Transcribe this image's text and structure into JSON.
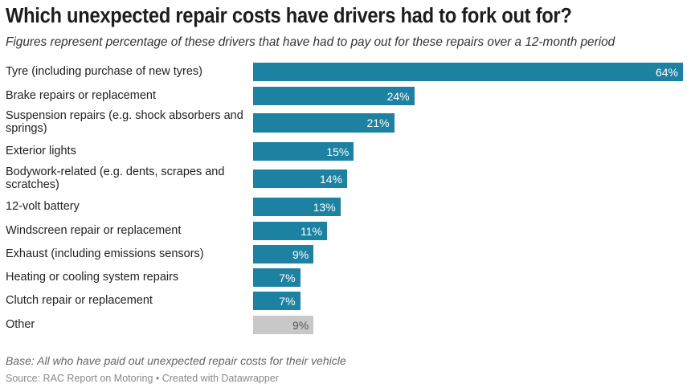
{
  "chart_data": {
    "type": "bar",
    "orientation": "horizontal",
    "title": "Which unexpected repair costs have drivers had to fork out for?",
    "subtitle": "Figures represent percentage of these drivers that have had to pay out for these repairs over a 12-month period",
    "categories": [
      "Tyre (including purchase of new tyres)",
      "Brake repairs or replacement",
      "Suspension repairs (e.g. shock absorbers and springs)",
      "Exterior lights",
      "Bodywork-related (e.g. dents, scrapes and scratches)",
      "12-volt battery",
      "Windscreen repair or replacement",
      "Exhaust (including emissions sensors)",
      "Heating or cooling system repairs",
      "Clutch repair or replacement",
      "Other"
    ],
    "values": [
      64,
      24,
      21,
      15,
      14,
      13,
      11,
      9,
      7,
      7,
      9
    ],
    "value_labels": [
      "64%",
      "24%",
      "21%",
      "15%",
      "14%",
      "13%",
      "11%",
      "9%",
      "7%",
      "7%",
      "9%"
    ],
    "unit": "%",
    "xlim": [
      0,
      64
    ],
    "colors": {
      "primary": "#1d81a2",
      "other": "#c8c8c8",
      "label_on_primary": "#ffffff",
      "label_on_other": "#555555"
    },
    "highlight_gray": [
      "Other"
    ],
    "xlabel": "",
    "ylabel": "",
    "grid": false,
    "legend": "none",
    "notes": "Base: All who have paid out unexpected repair costs for their vehicle",
    "source": "Source: RAC Report on Motoring • Created with Datawrapper"
  }
}
